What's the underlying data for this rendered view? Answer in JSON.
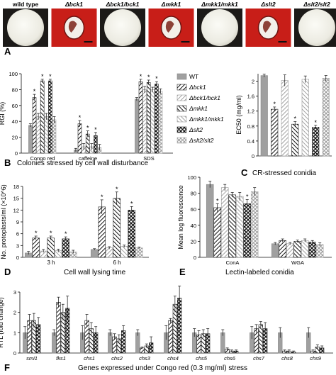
{
  "colony_labels": [
    "wild type",
    "Δbck1",
    "Δbck1/bck1",
    "Δmkk1",
    "Δmkk1/mkk1",
    "Δslt2",
    "Δslt2/slt2"
  ],
  "colony_backgrounds": [
    "#1c1a18",
    "#c81e18",
    "#1c1a18",
    "#c81e18",
    "#1c1a18",
    "#c81e18",
    "#1c1a18"
  ],
  "panel_letters": {
    "a": "A",
    "b": "B",
    "c": "C",
    "d": "D",
    "e": "E",
    "f": "F"
  },
  "legend": [
    "WT",
    "Δbck1",
    "Δbck1/bck1",
    "Δmkk1",
    "Δmkk1/mkk1",
    "Δslt2",
    "Δslt2/slt2"
  ],
  "chart_data": [
    {
      "id": "B",
      "type": "bar",
      "title": "",
      "caption": "Colonies stressed by cell wall disturbance",
      "xlabel": "",
      "ylabel": "RGI (%)",
      "ylim": [
        0,
        100
      ],
      "yticks": [
        0,
        20,
        40,
        60,
        80,
        100
      ],
      "categories": [
        "Congo red",
        "caffeine",
        "SDS"
      ],
      "series": [
        {
          "name": "WT",
          "values": [
            35,
            4,
            68
          ],
          "errors": [
            2,
            2,
            2
          ],
          "sig": [
            false,
            false,
            false
          ]
        },
        {
          "name": "Δbck1",
          "values": [
            70,
            37,
            90
          ],
          "errors": [
            4,
            4,
            3
          ],
          "sig": [
            true,
            true,
            true
          ]
        },
        {
          "name": "Δbck1/bck1",
          "values": [
            46,
            8,
            80
          ],
          "errors": [
            4,
            4,
            4
          ],
          "sig": [
            false,
            false,
            false
          ]
        },
        {
          "name": "Δmkk1",
          "values": [
            91,
            24,
            89
          ],
          "errors": [
            2,
            4,
            3
          ],
          "sig": [
            true,
            true,
            true
          ]
        },
        {
          "name": "Δmkk1/mkk1",
          "values": [
            46,
            8,
            80
          ],
          "errors": [
            4,
            4,
            3
          ],
          "sig": [
            false,
            false,
            false
          ]
        },
        {
          "name": "Δslt2",
          "values": [
            91,
            22,
            87
          ],
          "errors": [
            2,
            4,
            3
          ],
          "sig": [
            true,
            true,
            true
          ]
        },
        {
          "name": "Δslt2/slt2",
          "values": [
            42,
            7,
            78
          ],
          "errors": [
            4,
            4,
            3
          ],
          "sig": [
            false,
            false,
            false
          ]
        }
      ]
    },
    {
      "id": "C",
      "type": "bar",
      "title": "",
      "caption": "CR-stressed conidia",
      "xlabel": "",
      "ylabel": "EC50 (mg/ml)",
      "ylim": [
        0,
        2.2
      ],
      "yticks": [
        0,
        0.4,
        0.8,
        1.2,
        1.6,
        2.0
      ],
      "categories": [
        "WT",
        "Δbck1",
        "Δbck1/bck1",
        "Δmkk1",
        "Δmkk1/mkk1",
        "Δslt2",
        "Δslt2/slt2"
      ],
      "values": [
        2.15,
        1.25,
        2.02,
        0.85,
        2.05,
        0.77,
        2.08
      ],
      "errors": [
        0.04,
        0.06,
        0.15,
        0.07,
        0.09,
        0.05,
        0.07
      ],
      "sig": [
        false,
        true,
        false,
        true,
        false,
        true,
        false
      ]
    },
    {
      "id": "D",
      "type": "bar",
      "title": "",
      "caption": "Cell wall lysing time",
      "xlabel": "",
      "ylabel": "No. protoplasts/ml (×10^6)",
      "ylim": [
        0,
        18
      ],
      "yticks": [
        0,
        3,
        6,
        9,
        12,
        15,
        18
      ],
      "categories": [
        "3 h",
        "6 h"
      ],
      "series": [
        {
          "name": "WT",
          "values": [
            1.1,
            2.0
          ],
          "errors": [
            0.4,
            0.2
          ],
          "sig": [
            false,
            false
          ]
        },
        {
          "name": "Δbck1",
          "values": [
            4.9,
            12.8
          ],
          "errors": [
            0.5,
            1.8
          ],
          "sig": [
            true,
            true
          ]
        },
        {
          "name": "Δbck1/bck1",
          "values": [
            1.6,
            2.4
          ],
          "errors": [
            0.4,
            0.3
          ],
          "sig": [
            false,
            false
          ]
        },
        {
          "name": "Δmkk1",
          "values": [
            4.9,
            15.0
          ],
          "errors": [
            0.5,
            1.6
          ],
          "sig": [
            true,
            true
          ]
        },
        {
          "name": "Δmkk1/mkk1",
          "values": [
            1.7,
            2.8
          ],
          "errors": [
            0.4,
            0.3
          ],
          "sig": [
            false,
            false
          ]
        },
        {
          "name": "Δslt2",
          "values": [
            4.7,
            12.0
          ],
          "errors": [
            0.5,
            0.9
          ],
          "sig": [
            true,
            true
          ]
        },
        {
          "name": "Δslt2/slt2",
          "values": [
            1.4,
            2.4
          ],
          "errors": [
            0.4,
            0.2
          ],
          "sig": [
            false,
            false
          ]
        }
      ]
    },
    {
      "id": "E",
      "type": "bar",
      "title": "",
      "caption": "Lectin-labeled conidia",
      "xlabel": "",
      "ylabel": "Mean log fluorescence",
      "ylim": [
        0,
        100
      ],
      "yticks": [
        0,
        20,
        40,
        60,
        80,
        100
      ],
      "categories": [
        "ConA",
        "WGA"
      ],
      "series": [
        {
          "name": "WT",
          "values": [
            91,
            17
          ],
          "errors": [
            4,
            1.5
          ],
          "sig": [
            false,
            false
          ]
        },
        {
          "name": "Δbck1",
          "values": [
            62,
            21
          ],
          "errors": [
            5,
            2
          ],
          "sig": [
            true,
            false
          ]
        },
        {
          "name": "Δbck1/bck1",
          "values": [
            87,
            17
          ],
          "errors": [
            4,
            1.5
          ],
          "sig": [
            false,
            false
          ]
        },
        {
          "name": "Δmkk1",
          "values": [
            78,
            20
          ],
          "errors": [
            3,
            1.5
          ],
          "sig": [
            false,
            false
          ]
        },
        {
          "name": "Δmkk1/mkk1",
          "values": [
            76,
            21
          ],
          "errors": [
            5,
            2
          ],
          "sig": [
            false,
            false
          ]
        },
        {
          "name": "Δslt2",
          "values": [
            67,
            19
          ],
          "errors": [
            5,
            2
          ],
          "sig": [
            true,
            false
          ]
        },
        {
          "name": "Δslt2/slt2",
          "values": [
            82,
            16
          ],
          "errors": [
            5,
            2
          ],
          "sig": [
            false,
            false
          ]
        }
      ]
    },
    {
      "id": "F",
      "type": "bar",
      "title": "",
      "caption": "Genes expressed under Congo red (0.3 mg/ml) stress",
      "xlabel": "",
      "ylabel": "RTL (fold change)",
      "ylim": [
        0,
        3
      ],
      "yticks": [
        0,
        1,
        2,
        3
      ],
      "categories": [
        "smi1",
        "fks1",
        "chs1",
        "chs2",
        "chs3",
        "chs4",
        "chs5",
        "chs6",
        "chs7",
        "chs8",
        "chs9"
      ],
      "series": [
        {
          "name": "WT",
          "values": [
            1.0,
            1.0,
            1.0,
            1.0,
            1.0,
            1.0,
            1.0,
            1.0,
            1.0,
            1.0,
            1.0
          ],
          "errors": [
            0.3,
            0.15,
            0.35,
            0.15,
            0.15,
            0.35,
            0.2,
            0.15,
            0.3,
            0.25,
            0.25
          ]
        },
        {
          "name": "Δbck1",
          "values": [
            1.6,
            2.5,
            1.6,
            0.8,
            0.25,
            1.6,
            0.9,
            0.2,
            1.2,
            0.1,
            0.1
          ],
          "errors": [
            0.3,
            0.25,
            0.3,
            0.15,
            0.05,
            0.1,
            0.2,
            0.05,
            0.2,
            0.05,
            0.05
          ]
        },
        {
          "name": "Δmkk1",
          "values": [
            1.6,
            2.0,
            1.2,
            0.7,
            0.35,
            2.4,
            0.95,
            0.1,
            1.4,
            0.1,
            0.3
          ],
          "errors": [
            0.35,
            0.4,
            0.3,
            0.2,
            0.1,
            0.4,
            0.2,
            0.05,
            0.15,
            0.05,
            0.1
          ]
        },
        {
          "name": "Δslt2",
          "values": [
            1.4,
            2.2,
            1.0,
            1.1,
            0.5,
            2.7,
            0.95,
            0.1,
            1.2,
            0.05,
            0.25
          ],
          "errors": [
            0.35,
            0.6,
            0.3,
            0.25,
            0.3,
            0.6,
            0.25,
            0.05,
            0.3,
            0.05,
            0.1
          ]
        }
      ]
    }
  ]
}
